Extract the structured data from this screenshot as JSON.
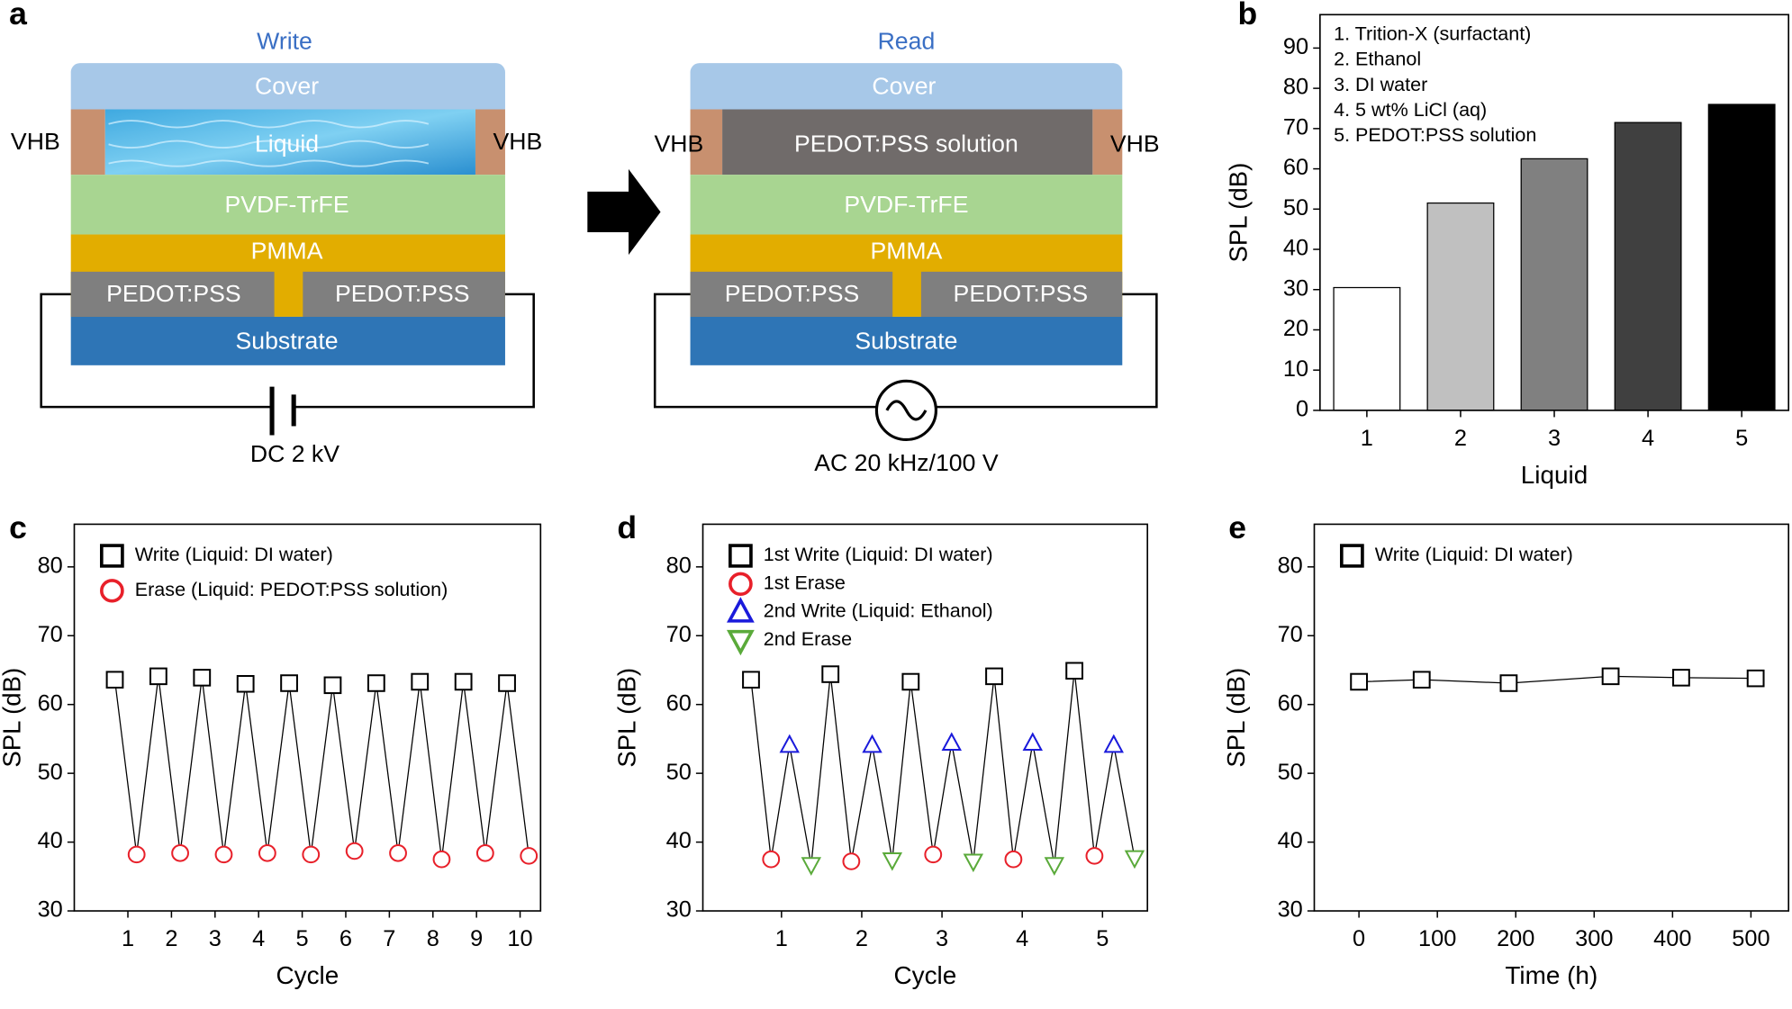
{
  "diagram": {
    "panel_label": "a",
    "write": {
      "title": "Write",
      "cover": "Cover",
      "liquid": "Liquid",
      "vhb_left": "VHB",
      "vhb_right": "VHB",
      "pvdf": "PVDF-TrFE",
      "pmma": "PMMA",
      "electrode_left": "PEDOT:PSS",
      "electrode_right": "PEDOT:PSS",
      "substrate": "Substrate",
      "source": "DC 2 kV"
    },
    "read": {
      "title": "Read",
      "cover": "Cover",
      "liquid": "PEDOT:PSS solution",
      "vhb_left": "VHB",
      "vhb_right": "VHB",
      "pvdf": "PVDF-TrFE",
      "pmma": "PMMA",
      "electrode_left": "PEDOT:PSS",
      "electrode_right": "PEDOT:PSS",
      "substrate": "Substrate",
      "source": "AC 20 kHz/100 V"
    }
  },
  "chart_data": [
    {
      "type": "bar",
      "label": "b",
      "xlabel": "Liquid",
      "ylabel": "SPL (dB)",
      "annotations": [
        "1. Trition-X (surfactant)",
        "2. Ethanol",
        "3. DI water",
        "4. 5 wt% LiCl (aq)",
        "5. PEDOT:PSS solution"
      ],
      "categories": [
        "1",
        "2",
        "3",
        "4",
        "5"
      ],
      "values": [
        30.5,
        51.5,
        62.5,
        71.5,
        76
      ],
      "colors": [
        "#ffffff",
        "#c0c0c0",
        "#808080",
        "#404040",
        "#000000"
      ],
      "ylim": [
        0,
        98.3
      ],
      "yticks": [
        0,
        10,
        20,
        30,
        40,
        50,
        60,
        70,
        80,
        90
      ]
    },
    {
      "type": "line",
      "label": "c",
      "xlabel": "Cycle",
      "ylabel": "SPL (dB)",
      "connect": "alternating",
      "legend": "upper left",
      "xlim": [
        -0.23,
        10.47
      ],
      "xticks": [
        1,
        2,
        3,
        4,
        5,
        6,
        7,
        8,
        9,
        10
      ],
      "ylim": [
        30,
        86.2
      ],
      "yticks": [
        30,
        40,
        50,
        60,
        70,
        80
      ],
      "series": [
        {
          "name": "Write (Liquid: DI water)",
          "marker": "square",
          "color": "#000000",
          "x": [
            0.7,
            1.7,
            2.7,
            3.7,
            4.7,
            5.7,
            6.7,
            7.7,
            8.7,
            9.7
          ],
          "values": [
            63.6,
            64.1,
            63.9,
            63.0,
            63.1,
            62.8,
            63.1,
            63.3,
            63.3,
            63.1
          ]
        },
        {
          "name": "Erase (Liquid: PEDOT:PSS solution)",
          "marker": "circle",
          "color": "#e8202a",
          "x": [
            1.2,
            2.2,
            3.2,
            4.2,
            5.2,
            6.2,
            7.2,
            8.2,
            9.2,
            10.2
          ],
          "values": [
            38.2,
            38.4,
            38.2,
            38.4,
            38.2,
            38.7,
            38.4,
            37.5,
            38.4,
            38.0
          ]
        }
      ]
    },
    {
      "type": "line",
      "label": "d",
      "xlabel": "Cycle",
      "ylabel": "SPL (dB)",
      "connect": "alternating",
      "legend": "upper left",
      "xlim": [
        0.02,
        5.56
      ],
      "xticks": [
        1,
        2,
        3,
        4,
        5
      ],
      "ylim": [
        30,
        86.2
      ],
      "yticks": [
        30,
        40,
        50,
        60,
        70,
        80
      ],
      "series": [
        {
          "name": "1st Write (Liquid: DI water)",
          "marker": "square",
          "color": "#000000",
          "x": [
            0.62,
            1.61,
            2.61,
            3.65,
            4.65
          ],
          "values": [
            63.6,
            64.4,
            63.3,
            64.1,
            64.9
          ]
        },
        {
          "name": "1st Erase",
          "marker": "circle",
          "color": "#e8202a",
          "x": [
            0.87,
            1.87,
            2.89,
            3.89,
            4.9
          ],
          "values": [
            37.5,
            37.2,
            38.2,
            37.5,
            38.0
          ]
        },
        {
          "name": "2nd Write (Liquid: Ethanol)",
          "marker": "triangle-up",
          "color": "#1a1adb",
          "x": [
            1.1,
            2.13,
            3.12,
            4.13,
            5.14
          ],
          "values": [
            54.1,
            54.1,
            54.4,
            54.4,
            54.1
          ]
        },
        {
          "name": "2nd Erase",
          "marker": "triangle-down",
          "color": "#5aaa3a",
          "x": [
            1.37,
            2.38,
            3.39,
            4.4,
            5.4
          ],
          "values": [
            36.7,
            37.4,
            37.2,
            36.7,
            37.7
          ]
        }
      ]
    },
    {
      "type": "line",
      "label": "e",
      "xlabel": "Time (h)",
      "ylabel": "SPL (dB)",
      "connect": "alternating",
      "legend": "upper left",
      "xlim": [
        -57,
        548
      ],
      "xticks": [
        0,
        100,
        200,
        300,
        400,
        500
      ],
      "ylim": [
        30,
        86.2
      ],
      "yticks": [
        30,
        40,
        50,
        60,
        70,
        80
      ],
      "series": [
        {
          "name": "Write (Liquid: DI water)",
          "marker": "square",
          "color": "#000000",
          "x": [
            0,
            80,
            191,
            321,
            411,
            506
          ],
          "values": [
            63.3,
            63.6,
            63.1,
            64.1,
            63.9,
            63.8
          ]
        }
      ]
    }
  ]
}
